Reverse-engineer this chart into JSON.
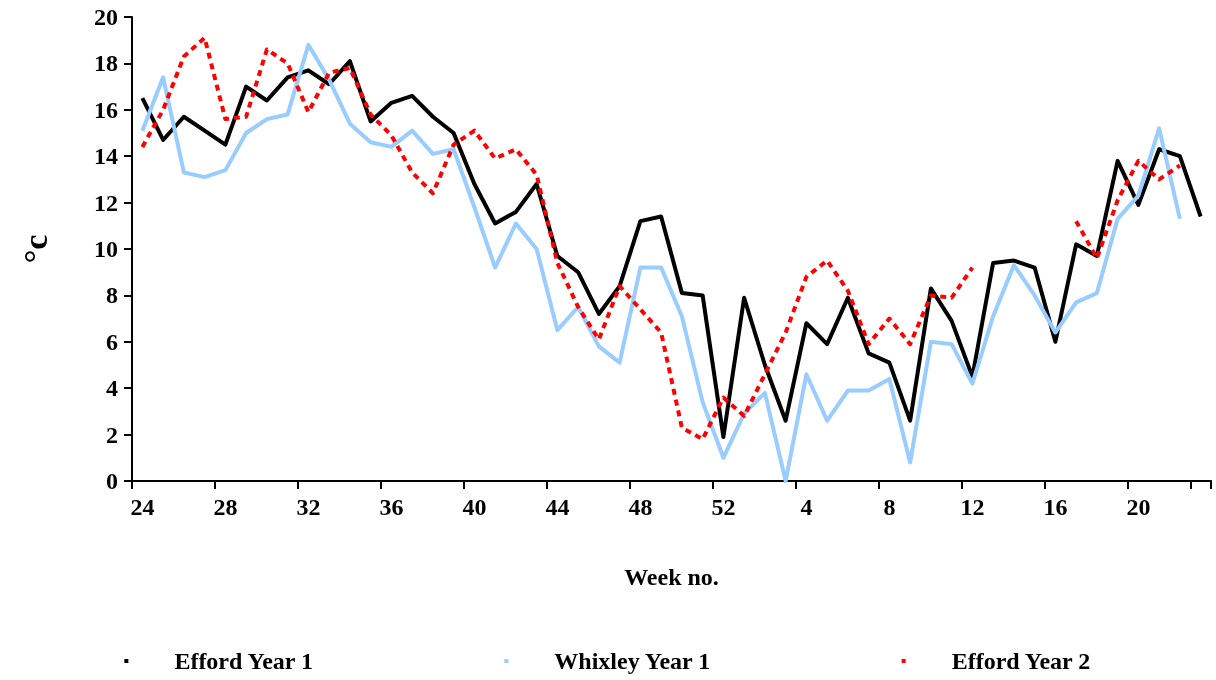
{
  "chart_data": {
    "type": "line",
    "xlabel": "Week no.",
    "ylabel": "°c",
    "categories": [
      "24",
      null,
      null,
      null,
      "28",
      null,
      null,
      null,
      "32",
      null,
      null,
      null,
      "36",
      null,
      null,
      null,
      "40",
      null,
      null,
      null,
      "44",
      null,
      null,
      null,
      "48",
      null,
      null,
      null,
      "52",
      null,
      null,
      null,
      "4",
      null,
      null,
      null,
      "8",
      null,
      null,
      null,
      "12",
      null,
      null,
      null,
      "16",
      null,
      null,
      null,
      "20",
      null,
      null,
      null
    ],
    "series": [
      {
        "name": "Efford Year 1",
        "color": "#000000",
        "line_style": "solid",
        "values": [
          16.5,
          14.7,
          15.7,
          15.1,
          14.5,
          17.0,
          16.4,
          17.4,
          17.7,
          17.1,
          18.1,
          15.5,
          16.3,
          16.6,
          15.7,
          15.0,
          12.8,
          11.1,
          11.6,
          12.8,
          9.7,
          9.0,
          7.2,
          8.4,
          11.2,
          11.4,
          8.1,
          8.0,
          1.9,
          7.9,
          5.0,
          2.6,
          6.8,
          5.9,
          7.9,
          5.5,
          5.1,
          2.6,
          8.3,
          6.9,
          4.5,
          9.4,
          9.5,
          9.2,
          6.0,
          10.2,
          9.7,
          13.8,
          11.9,
          14.3,
          14.0,
          11.4
        ]
      },
      {
        "name": "Whixley Year 1",
        "color": "#99ccff",
        "line_style": "solid",
        "values": [
          15.1,
          17.4,
          13.3,
          13.1,
          13.4,
          15.0,
          15.6,
          15.8,
          18.8,
          17.3,
          15.4,
          14.6,
          14.4,
          15.1,
          14.1,
          14.3,
          11.8,
          9.2,
          11.1,
          10.0,
          6.5,
          7.5,
          5.8,
          5.1,
          9.2,
          9.2,
          7.1,
          3.4,
          1.0,
          2.9,
          3.8,
          0.0,
          4.6,
          2.6,
          3.9,
          3.9,
          4.4,
          0.8,
          6.0,
          5.9,
          4.2,
          7.1,
          9.3,
          8.0,
          6.4,
          7.7,
          8.1,
          11.3,
          12.3,
          15.2,
          11.3,
          null
        ]
      },
      {
        "name": "Efford Year 2",
        "color": "#ff0000",
        "line_style": "dashed",
        "values": [
          14.4,
          16.0,
          18.3,
          19.1,
          15.6,
          15.7,
          18.6,
          18.0,
          15.9,
          17.6,
          17.8,
          15.8,
          14.9,
          13.3,
          12.4,
          14.5,
          15.1,
          13.9,
          14.3,
          13.2,
          9.4,
          7.5,
          6.1,
          8.4,
          7.4,
          6.4,
          2.3,
          1.8,
          3.6,
          2.8,
          4.6,
          6.4,
          8.8,
          9.5,
          8.2,
          5.9,
          7.0,
          5.9,
          8.0,
          7.9,
          9.2,
          null,
          null,
          null,
          null,
          11.2,
          9.6,
          12.1,
          13.8,
          13.0,
          13.6,
          null
        ]
      }
    ],
    "ylim": [
      0,
      20
    ],
    "yticks": [
      0,
      2,
      4,
      6,
      8,
      10,
      12,
      14,
      16,
      18,
      20
    ],
    "grid": false,
    "legend": "bottom",
    "marker": "none"
  }
}
